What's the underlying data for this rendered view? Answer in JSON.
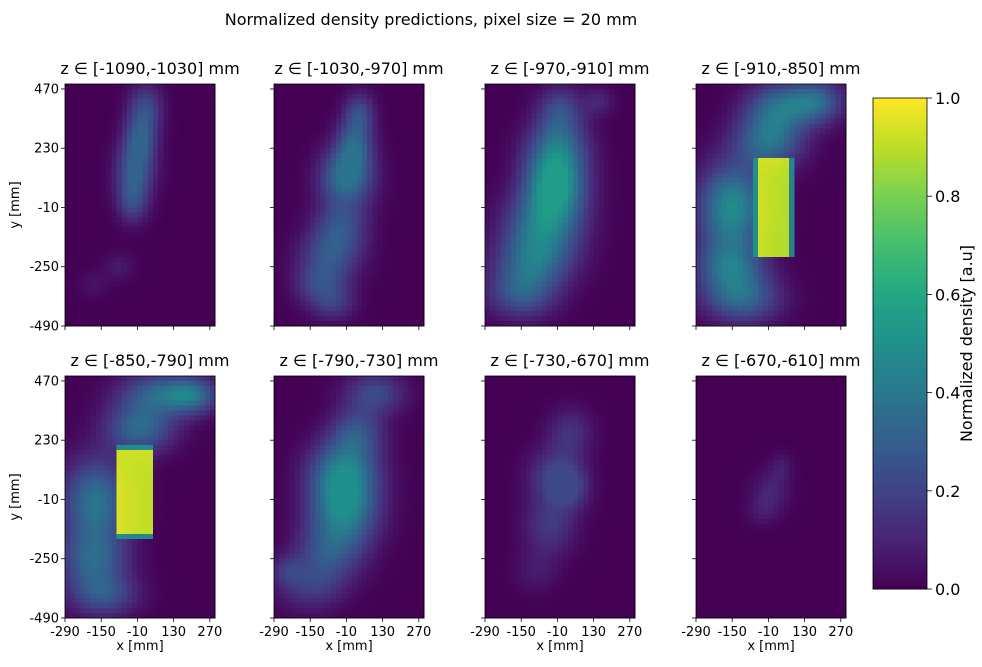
{
  "chart_data": {
    "type": "heatmap",
    "title": "Normalized density predictions, pixel size = 20 mm",
    "xlabel": "x [mm]",
    "ylabel": "y [mm]",
    "x_ticks": [
      "-290",
      "-150",
      "-10",
      "130",
      "270"
    ],
    "y_ticks": [
      "470",
      "230",
      "-10",
      "-250",
      "-490"
    ],
    "xlim": [
      -290,
      290
    ],
    "ylim": [
      -490,
      490
    ],
    "colorbar": {
      "label": "Normalized density [a.u]",
      "range": [
        0.0,
        1.0
      ],
      "ticks": [
        "0.0",
        "0.2",
        "0.4",
        "0.6",
        "0.8",
        "1.0"
      ],
      "colormap": "viridis"
    },
    "panels": [
      {
        "title": "z ∈ [-1090,-1030] mm",
        "peak": 0.32,
        "blobs": [
          {
            "x": 20,
            "y": 390,
            "sx": 45,
            "sy": 70,
            "v": 0.22
          },
          {
            "x": 0,
            "y": 260,
            "sx": 45,
            "sy": 70,
            "v": 0.25
          },
          {
            "x": -20,
            "y": 130,
            "sx": 50,
            "sy": 80,
            "v": 0.28
          },
          {
            "x": -30,
            "y": 10,
            "sx": 40,
            "sy": 60,
            "v": 0.18
          },
          {
            "x": -80,
            "y": -250,
            "sx": 40,
            "sy": 40,
            "v": 0.07
          },
          {
            "x": -180,
            "y": -320,
            "sx": 40,
            "sy": 40,
            "v": 0.05
          }
        ]
      },
      {
        "title": "z ∈ [-1030,-970] mm",
        "peak": 0.38,
        "blobs": [
          {
            "x": 40,
            "y": 370,
            "sx": 40,
            "sy": 60,
            "v": 0.22
          },
          {
            "x": 20,
            "y": 240,
            "sx": 50,
            "sy": 70,
            "v": 0.28
          },
          {
            "x": -10,
            "y": 110,
            "sx": 70,
            "sy": 80,
            "v": 0.38
          },
          {
            "x": -30,
            "y": -80,
            "sx": 70,
            "sy": 70,
            "v": 0.22
          },
          {
            "x": -70,
            "y": -200,
            "sx": 80,
            "sy": 70,
            "v": 0.24
          },
          {
            "x": -110,
            "y": -320,
            "sx": 70,
            "sy": 60,
            "v": 0.2
          },
          {
            "x": -60,
            "y": -400,
            "sx": 60,
            "sy": 50,
            "v": 0.14
          }
        ]
      },
      {
        "title": "z ∈ [-970,-910] mm",
        "peak": 0.55,
        "blobs": [
          {
            "x": 0,
            "y": 380,
            "sx": 60,
            "sy": 70,
            "v": 0.22
          },
          {
            "x": 150,
            "y": 420,
            "sx": 40,
            "sy": 40,
            "v": 0.1
          },
          {
            "x": -10,
            "y": 230,
            "sx": 80,
            "sy": 80,
            "v": 0.32
          },
          {
            "x": -20,
            "y": 80,
            "sx": 80,
            "sy": 90,
            "v": 0.52
          },
          {
            "x": -60,
            "y": -80,
            "sx": 100,
            "sy": 90,
            "v": 0.38
          },
          {
            "x": -100,
            "y": -230,
            "sx": 100,
            "sy": 80,
            "v": 0.32
          },
          {
            "x": -150,
            "y": -360,
            "sx": 90,
            "sy": 70,
            "v": 0.26
          }
        ]
      },
      {
        "title": "z ∈ [-910,-850] mm",
        "peak": 0.95,
        "rect": {
          "x0": -60,
          "x1": 80,
          "y0": -210,
          "y1": 190,
          "v": 0.88
        },
        "blobs": [
          {
            "x": 40,
            "y": 400,
            "sx": 90,
            "sy": 70,
            "v": 0.32
          },
          {
            "x": 180,
            "y": 420,
            "sx": 70,
            "sy": 60,
            "v": 0.3
          },
          {
            "x": -10,
            "y": 260,
            "sx": 90,
            "sy": 80,
            "v": 0.36
          },
          {
            "x": -150,
            "y": -10,
            "sx": 90,
            "sy": 120,
            "v": 0.48
          },
          {
            "x": -160,
            "y": -250,
            "sx": 90,
            "sy": 80,
            "v": 0.34
          },
          {
            "x": -110,
            "y": -380,
            "sx": 100,
            "sy": 70,
            "v": 0.3
          }
        ]
      },
      {
        "title": "z ∈ [-850,-790] mm",
        "peak": 0.95,
        "rect": {
          "x0": -90,
          "x1": 50,
          "y0": -160,
          "y1": 200,
          "v": 0.9
        },
        "blobs": [
          {
            "x": 80,
            "y": 420,
            "sx": 110,
            "sy": 60,
            "v": 0.3
          },
          {
            "x": 200,
            "y": 410,
            "sx": 70,
            "sy": 50,
            "v": 0.28
          },
          {
            "x": 0,
            "y": 280,
            "sx": 90,
            "sy": 70,
            "v": 0.34
          },
          {
            "x": -170,
            "y": -20,
            "sx": 90,
            "sy": 120,
            "v": 0.38
          },
          {
            "x": -180,
            "y": -260,
            "sx": 90,
            "sy": 90,
            "v": 0.3
          },
          {
            "x": -140,
            "y": -400,
            "sx": 90,
            "sy": 60,
            "v": 0.22
          }
        ]
      },
      {
        "title": "z ∈ [-790,-730] mm",
        "peak": 0.5,
        "blobs": [
          {
            "x": 100,
            "y": 420,
            "sx": 80,
            "sy": 60,
            "v": 0.22
          },
          {
            "x": 30,
            "y": 260,
            "sx": 70,
            "sy": 70,
            "v": 0.24
          },
          {
            "x": -20,
            "y": 100,
            "sx": 90,
            "sy": 90,
            "v": 0.4
          },
          {
            "x": -20,
            "y": -60,
            "sx": 90,
            "sy": 100,
            "v": 0.42
          },
          {
            "x": -80,
            "y": -230,
            "sx": 90,
            "sy": 80,
            "v": 0.22
          },
          {
            "x": -150,
            "y": -360,
            "sx": 90,
            "sy": 70,
            "v": 0.16
          },
          {
            "x": -240,
            "y": -300,
            "sx": 40,
            "sy": 40,
            "v": 0.12
          }
        ]
      },
      {
        "title": "z ∈ [-730,-670] mm",
        "peak": 0.22,
        "blobs": [
          {
            "x": 40,
            "y": 260,
            "sx": 60,
            "sy": 70,
            "v": 0.14
          },
          {
            "x": -20,
            "y": 80,
            "sx": 70,
            "sy": 80,
            "v": 0.2
          },
          {
            "x": 40,
            "y": 40,
            "sx": 50,
            "sy": 60,
            "v": 0.16
          },
          {
            "x": -40,
            "y": -120,
            "sx": 70,
            "sy": 80,
            "v": 0.16
          },
          {
            "x": -90,
            "y": -300,
            "sx": 60,
            "sy": 60,
            "v": 0.07
          }
        ]
      },
      {
        "title": "z ∈ [-670,-610] mm",
        "peak": 0.12,
        "blobs": [
          {
            "x": 0,
            "y": 20,
            "sx": 50,
            "sy": 60,
            "v": 0.1
          },
          {
            "x": 40,
            "y": 120,
            "sx": 30,
            "sy": 40,
            "v": 0.07
          },
          {
            "x": -40,
            "y": -60,
            "sx": 40,
            "sy": 40,
            "v": 0.06
          }
        ]
      }
    ]
  }
}
